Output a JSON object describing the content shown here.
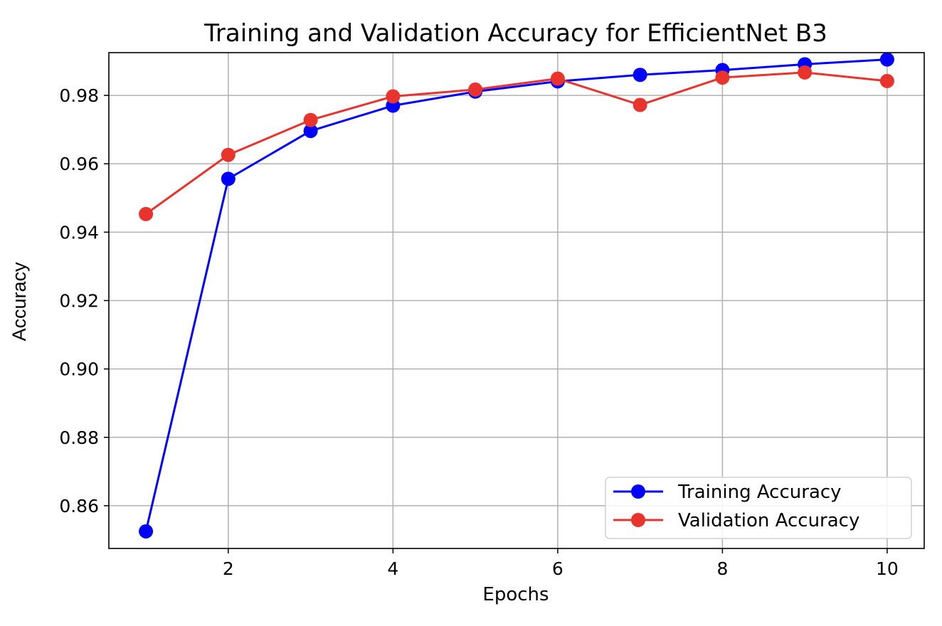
{
  "chart_data": {
    "type": "line",
    "title": "Training and Validation Accuracy for EfficientNet B3",
    "xlabel": "Epochs",
    "ylabel": "Accuracy",
    "x": [
      1,
      2,
      3,
      4,
      5,
      6,
      7,
      8,
      9,
      10
    ],
    "series": [
      {
        "name": "Training Accuracy",
        "color": "#0000ff",
        "marker": "circle",
        "values": [
          0.8525,
          0.9556,
          0.9696,
          0.977,
          0.9811,
          0.9841,
          0.986,
          0.9874,
          0.9891,
          0.9905
        ]
      },
      {
        "name": "Validation Accuracy",
        "color": "#e8342c",
        "marker": "circle",
        "values": [
          0.9453,
          0.9626,
          0.9728,
          0.9797,
          0.9817,
          0.9849,
          0.9772,
          0.9852,
          0.9867,
          0.9842
        ]
      }
    ],
    "xlim": [
      0.55,
      10.45
    ],
    "ylim": [
      0.8475,
      0.9925
    ],
    "xticks": [
      2,
      4,
      6,
      8,
      10
    ],
    "yticks": [
      0.86,
      0.88,
      0.9,
      0.92,
      0.94,
      0.96,
      0.98
    ],
    "xtick_labels": [
      "2",
      "4",
      "6",
      "8",
      "10"
    ],
    "ytick_labels": [
      "0.86",
      "0.88",
      "0.90",
      "0.92",
      "0.94",
      "0.96",
      "0.98"
    ],
    "grid": true,
    "legend_position": "lower-right"
  }
}
